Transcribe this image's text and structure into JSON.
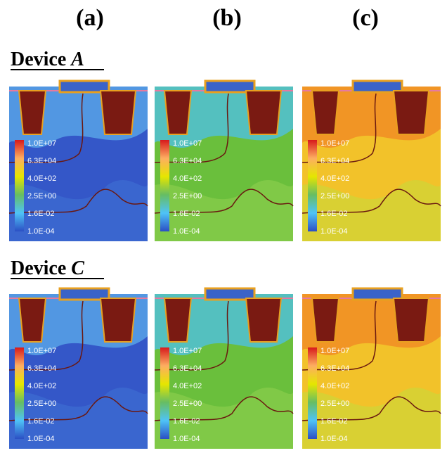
{
  "columns": [
    "(a)",
    "(b)",
    "(c)"
  ],
  "rows": [
    {
      "label": "Device ",
      "device": "A"
    },
    {
      "label": "Device ",
      "device": "C"
    }
  ],
  "legend": [
    "1.0E+07",
    "6.3E+04",
    "4.0E+02",
    "2.5E+00",
    "1.6E-02",
    "1.0E-04"
  ]
}
